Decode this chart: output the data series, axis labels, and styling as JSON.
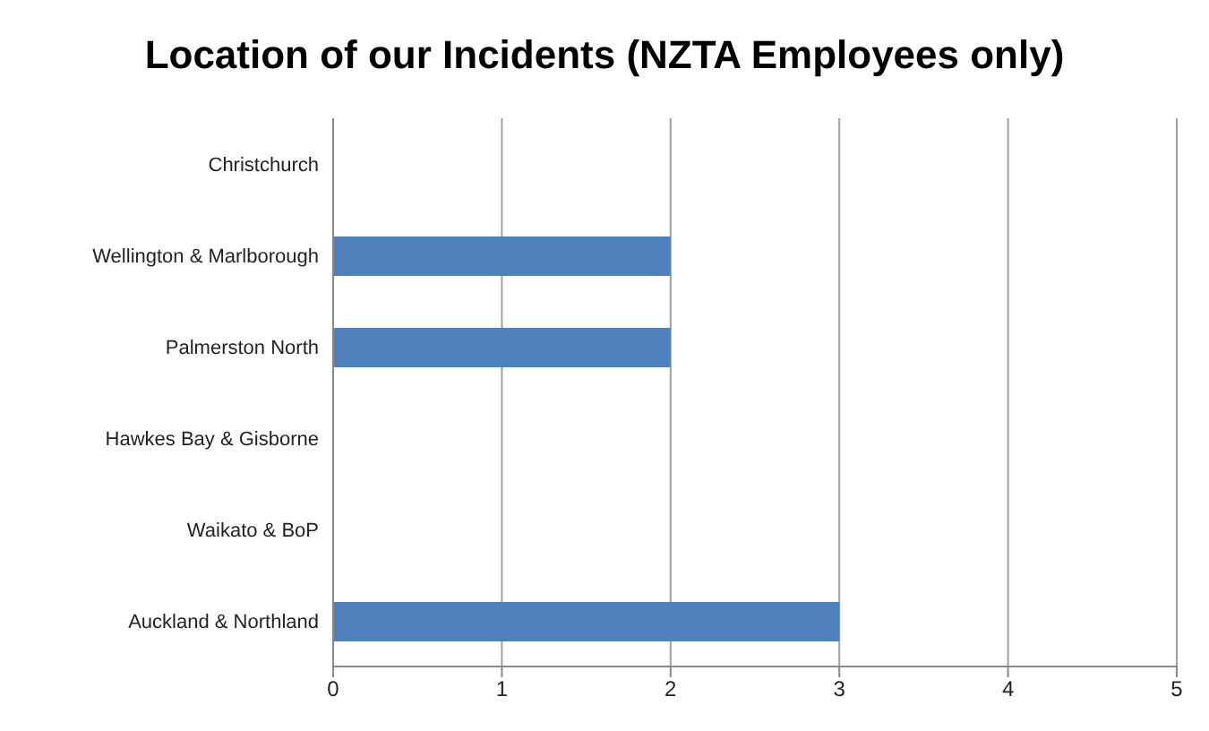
{
  "chart_data": {
    "type": "bar",
    "orientation": "horizontal",
    "title": "Location of our Incidents (NZTA Employees only)",
    "categories": [
      "Christchurch",
      "Wellington & Marlborough",
      "Palmerston North",
      "Hawkes Bay & Gisborne",
      "Waikato & BoP",
      "Auckland & Northland"
    ],
    "values": [
      0,
      2,
      2,
      0,
      0,
      3
    ],
    "color": "#4f81bd",
    "xlim": [
      0,
      5
    ],
    "xticks": [
      0,
      1,
      2,
      3,
      4,
      5
    ],
    "grid": "x"
  }
}
